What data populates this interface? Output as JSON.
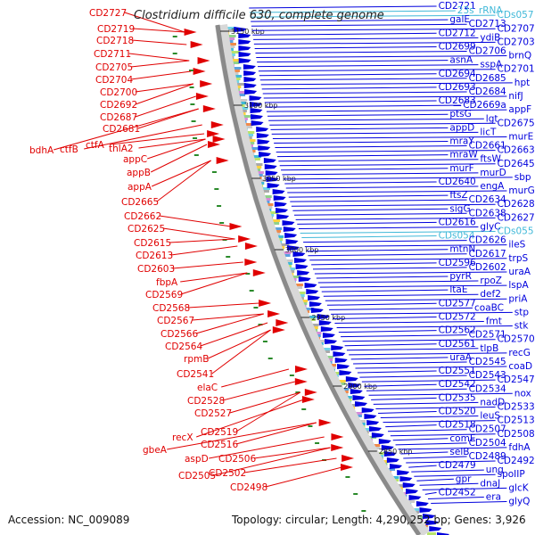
{
  "header": {
    "title_prefix": "",
    "organism": "Clostridium difficile 630",
    "title_suffix": ", complete genome"
  },
  "footer": {
    "accession_label": "Accession: NC_009089",
    "summary": "Topology: circular; Length: 4,290,252 bp; Genes: 3,926"
  },
  "colors": {
    "forward_strand": "#e00000",
    "reverse_strand": "#0000dd",
    "rna": "#3fb8d8",
    "backbone": "#888888"
  },
  "kbp_markers": [
    "3150 kbp",
    "3100 kbp",
    "3050 kbp",
    "3000 kbp",
    "2950 kbp",
    "2900 kbp",
    "2850 kbp"
  ],
  "left_labels": [
    "CD2727",
    "CD2719",
    "CD2718",
    "CD2711",
    "CD2705",
    "CD2704",
    "CD2700",
    "CD2692",
    "CD2687",
    "CD2681",
    "bdhA",
    "ctfB",
    "ctfA",
    "thlA2",
    "appC",
    "appB",
    "appA",
    "CD2665",
    "CD2662",
    "CD2625",
    "CD2615",
    "CD2613",
    "CD2603",
    "fbpA",
    "CD2569",
    "CD2568",
    "CD2567",
    "CD2566",
    "CD2564",
    "rpmB",
    "CD2541",
    "elaC",
    "CD2528",
    "CD2527",
    "CD2519",
    "recX",
    "CD2516",
    "gbeA",
    "aspD",
    "CD2506",
    "CD2505",
    "CD2502",
    "CD2498"
  ],
  "right_labels": [
    "CD2721",
    "23s_rRNA",
    "CDs057",
    "galE",
    "CD2713",
    "CD2707",
    "CD2712",
    "ydiB",
    "CD2703",
    "CD2699",
    "CD2706",
    "brnQ",
    "asnA",
    "sspA",
    "CD2701",
    "CD2694",
    "CD2685",
    "hpt",
    "CD2693",
    "CD2684",
    "nifJ",
    "CD2683",
    "CD2669a",
    "appF",
    "ptsG",
    "lgt",
    "CD2675",
    "appD",
    "licT",
    "murE",
    "mraY",
    "CD2661",
    "CD2663",
    "mraW",
    "ftsW",
    "CD2645",
    "murF",
    "murD",
    "sbp",
    "CD2640",
    "engA",
    "murG",
    "ftsZ",
    "CD2634",
    "CD2628",
    "sigG",
    "CD2638",
    "CD2627",
    "CD2616",
    "glyC",
    "CDs055",
    "CDs054",
    "CD2626",
    "ileS",
    "mtnN",
    "CD2617",
    "trpS",
    "CD2596",
    "CD2602",
    "uraA",
    "pyrR",
    "rpoZ",
    "lspA",
    "ltaE",
    "def2",
    "priA",
    "CD2577",
    "coaBC",
    "stp",
    "CD2572",
    "fmt",
    "stk",
    "CD2562",
    "CD2571",
    "CD2570",
    "CD2561",
    "tlpB",
    "recG",
    "uraA",
    "CD2545",
    "coaD",
    "CD2551",
    "CD2543",
    "CD2547",
    "CD2542",
    "CD2534",
    "nox",
    "CD2535",
    "nadD",
    "CD2533",
    "CD2520",
    "leuS",
    "CD2513",
    "CD2518",
    "CD2507",
    "CD2508",
    "comE",
    "CD2504",
    "fdhA",
    "selB",
    "CD2489",
    "CD2492",
    "CD2479",
    "ung",
    "spoIIP",
    "gpr",
    "dnaJ",
    "glcK",
    "CD2452",
    "era",
    "glyQ"
  ]
}
